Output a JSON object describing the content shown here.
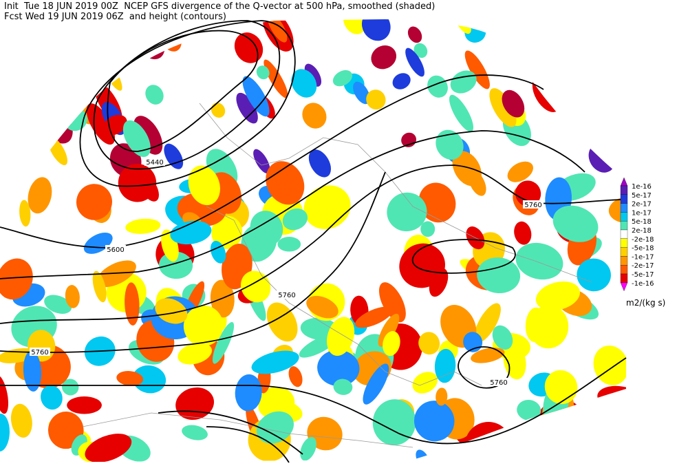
{
  "header": {
    "line1": "Init  Tue 18 JUN 2019 00Z  NCEP GFS divergence of the Q-vector at 500 hPa, smoothed (shaded)",
    "line2": "Fcst Wed 19 JUN 2019 06Z  and height (contours)"
  },
  "contour_labels": [
    "5440",
    "5600",
    "5760",
    "5760",
    "5760",
    "5760"
  ],
  "colorbar": {
    "labels": [
      "1e-16",
      "5e-17",
      "2e-17",
      "1e-17",
      "5e-18",
      "2e-18",
      "-2e-18",
      "-5e-18",
      "-1e-17",
      "-2e-17",
      "-5e-17",
      "-1e-16"
    ],
    "units": "m2/(kg s)"
  }
}
